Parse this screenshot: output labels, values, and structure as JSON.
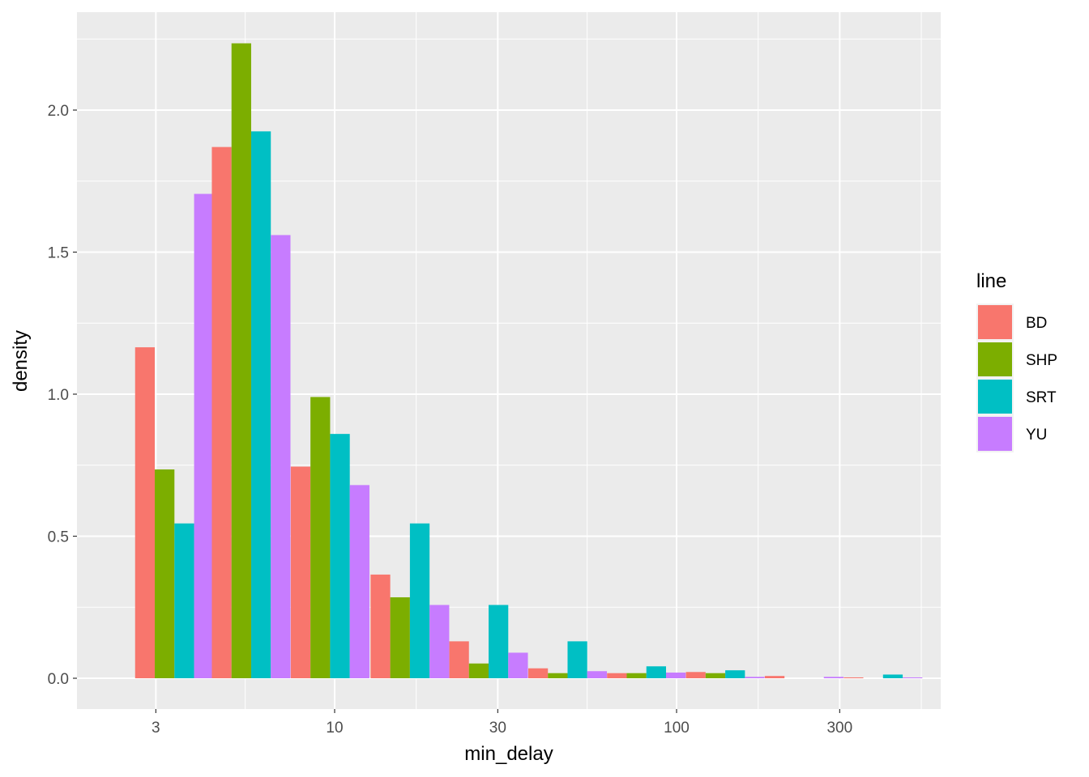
{
  "chart_data": {
    "type": "bar",
    "xlabel": "min_delay",
    "ylabel": "density",
    "x_scale": "log10",
    "x_ticks": [
      3,
      10,
      30,
      100,
      300
    ],
    "y_ticks": [
      0.0,
      0.5,
      1.0,
      1.5,
      2.0
    ],
    "y_tick_labels": [
      "0.0",
      "0.5",
      "1.0",
      "1.5",
      "2.0"
    ],
    "ylim": [
      0,
      2.23
    ],
    "grid": true,
    "legend_title": "line",
    "legend_position": "right",
    "bin_width_log10": 0.23,
    "bin_centers_min_delay": [
      3.4,
      5.7,
      9.7,
      16.6,
      28.2,
      48.0,
      81.6,
      138.8,
      236.1,
      401.6
    ],
    "series": [
      {
        "name": "BD",
        "color": "#F8766D",
        "values": [
          1.165,
          1.87,
          0.745,
          0.365,
          0.13,
          0.035,
          0.018,
          0.022,
          0.008,
          0.003
        ]
      },
      {
        "name": "SHP",
        "color": "#7CAE00",
        "values": [
          0.735,
          2.235,
          0.99,
          0.285,
          0.052,
          0.018,
          0.018,
          0.018,
          0.0,
          0.0
        ]
      },
      {
        "name": "SRT",
        "color": "#00BFC4",
        "values": [
          0.545,
          1.925,
          0.86,
          0.545,
          0.258,
          0.13,
          0.042,
          0.028,
          0.0,
          0.013
        ]
      },
      {
        "name": "YU",
        "color": "#C77CFF",
        "values": [
          1.705,
          1.56,
          0.68,
          0.258,
          0.09,
          0.025,
          0.02,
          0.005,
          0.005,
          0.003
        ]
      }
    ]
  }
}
